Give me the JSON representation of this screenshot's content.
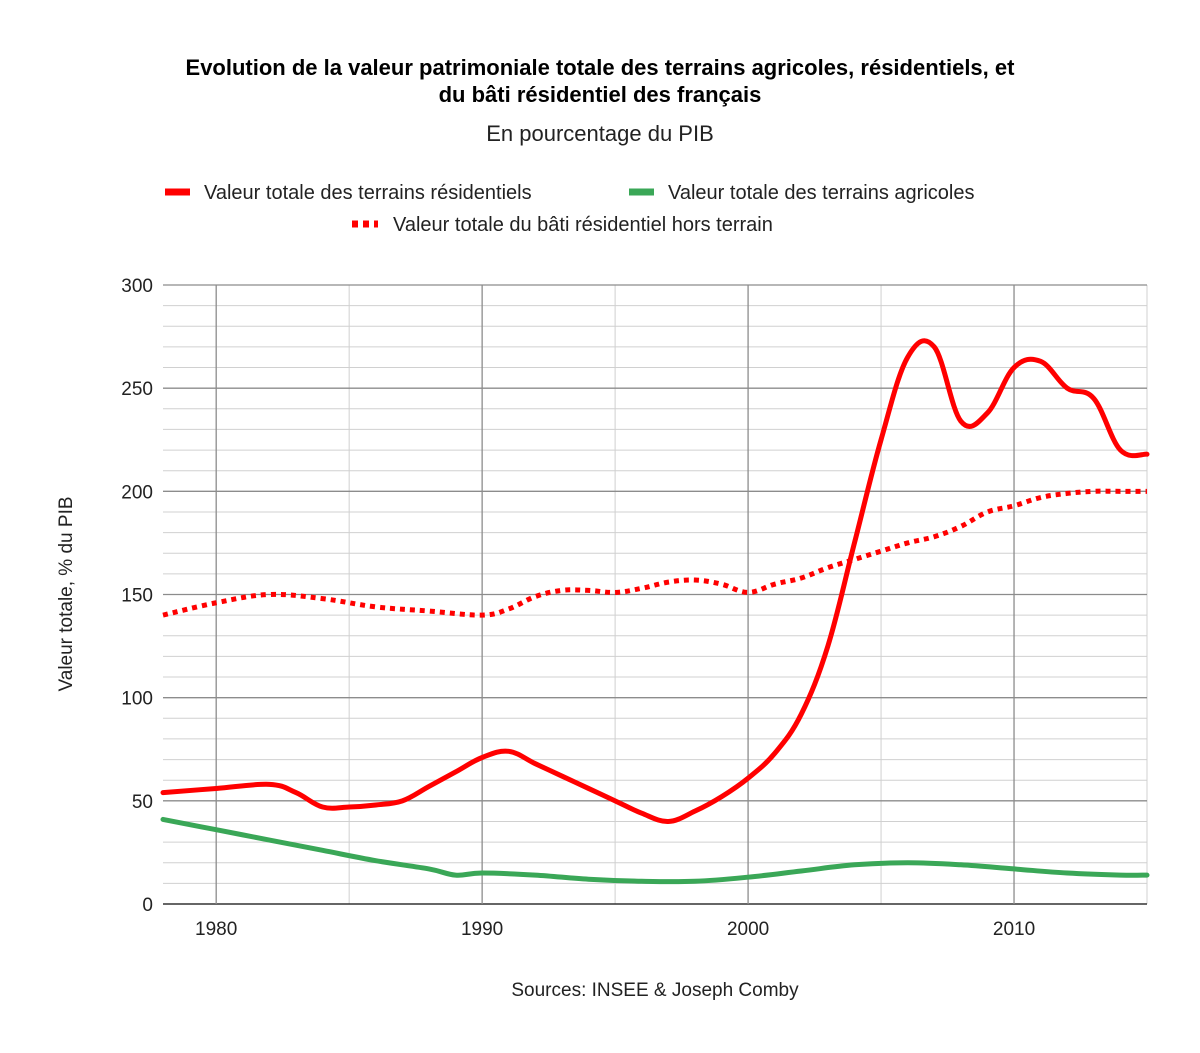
{
  "chart_data": {
    "type": "line",
    "title_line1": "Evolution de la valeur patrimoniale totale des terrains agricoles, résidentiels, et",
    "title_line2": "du bâti résidentiel des français",
    "subtitle": "En pourcentage du PIB",
    "ylabel": "Valeur totale, % du PIB",
    "source": "Sources: INSEE & Joseph Comby",
    "xlim": [
      1978,
      2015
    ],
    "ylim": [
      0,
      300
    ],
    "xticks": [
      1980,
      1990,
      2000,
      2010
    ],
    "yticks": [
      0,
      50,
      100,
      150,
      200,
      250,
      300
    ],
    "x_minor_step": 5,
    "y_minor_step": 10,
    "grid": true,
    "legend_position": "top",
    "series": [
      {
        "name": "Valeur totale des terrains résidentiels",
        "color": "#ff0000",
        "style": "solid",
        "x": [
          1978,
          1980,
          1982,
          1983,
          1984,
          1985,
          1986,
          1987,
          1988,
          1989,
          1990,
          1991,
          1992,
          1993,
          1994,
          1995,
          1996,
          1997,
          1998,
          1999,
          2000,
          2001,
          2002,
          2003,
          2004,
          2005,
          2006,
          2007,
          2008,
          2009,
          2010,
          2011,
          2012,
          2013,
          2014,
          2015
        ],
        "values": [
          54,
          56,
          58,
          54,
          47,
          47,
          48,
          50,
          57,
          64,
          71,
          74,
          68,
          62,
          56,
          50,
          44,
          40,
          45,
          52,
          61,
          73,
          92,
          125,
          175,
          225,
          265,
          270,
          234,
          238,
          260,
          263,
          250,
          245,
          220,
          218
        ]
      },
      {
        "name": "Valeur totale des terrains agricoles",
        "color": "#3aa757",
        "style": "solid",
        "x": [
          1978,
          1980,
          1982,
          1984,
          1986,
          1988,
          1989,
          1990,
          1992,
          1994,
          1996,
          1998,
          2000,
          2002,
          2004,
          2006,
          2008,
          2010,
          2012,
          2014,
          2015
        ],
        "values": [
          41,
          36,
          31,
          26,
          21,
          17,
          14,
          15,
          14,
          12,
          11,
          11,
          13,
          16,
          19,
          20,
          19,
          17,
          15,
          14,
          14
        ]
      },
      {
        "name": "Valeur totale du bâti résidentiel hors terrain",
        "color": "#ff0000",
        "style": "dotted",
        "x": [
          1978,
          1980,
          1982,
          1984,
          1986,
          1988,
          1990,
          1991,
          1992,
          1993,
          1994,
          1995,
          1996,
          1997,
          1998,
          1999,
          2000,
          2001,
          2002,
          2003,
          2004,
          2005,
          2006,
          2007,
          2008,
          2009,
          2010,
          2011,
          2012,
          2013,
          2014,
          2015
        ],
        "values": [
          140,
          146,
          150,
          148,
          144,
          142,
          140,
          143,
          149,
          152,
          152,
          151,
          153,
          156,
          157,
          155,
          151,
          155,
          158,
          163,
          167,
          171,
          175,
          178,
          183,
          190,
          193,
          197,
          199,
          200,
          200,
          200
        ]
      }
    ]
  }
}
